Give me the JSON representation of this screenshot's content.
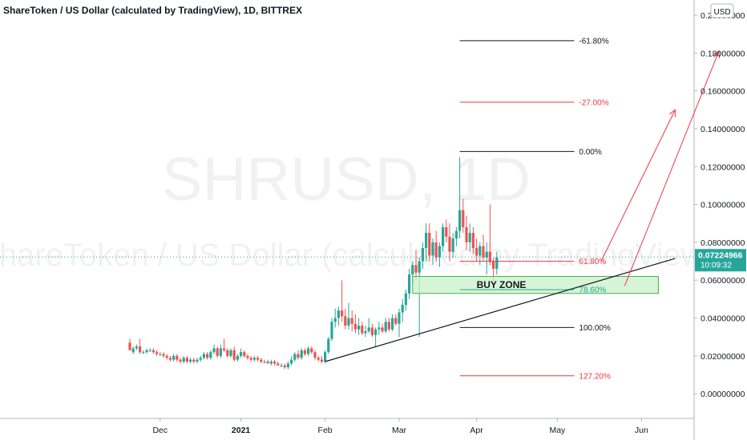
{
  "header": {
    "title": "ShareToken / US Dollar (calculated by TradingView), 1D, BITTREX"
  },
  "watermark": {
    "line1": "SHRUSD, 1D",
    "line2": "ShareToken / US Dollar (calculated by TradingView)"
  },
  "currency_button": "USD",
  "price_tag": {
    "price": "0.07224966",
    "countdown": "10:09:32"
  },
  "colors": {
    "up": "#26a69a",
    "down": "#ef5350",
    "fib_black": "#131722",
    "fib_red": "#f23645",
    "fib_teal": "#22ab94",
    "buy_zone_fill": "#c8f0c8",
    "buy_zone_border": "#4caf50",
    "axis_text": "#131722",
    "grid": "#e0e3eb",
    "tag_bg": "#26a69a"
  },
  "annotations": {
    "buy_zone": "BUY ZONE"
  },
  "fib_levels": [
    {
      "label": "-61.80%",
      "price": 0.1865,
      "color": "black"
    },
    {
      "label": "-27.00%",
      "price": 0.154,
      "color": "red"
    },
    {
      "label": "0.00%",
      "price": 0.128,
      "color": "black"
    },
    {
      "label": "61.80%",
      "price": 0.07,
      "color": "red"
    },
    {
      "label": "78.60%",
      "price": 0.055,
      "color": "teal"
    },
    {
      "label": "100.00%",
      "price": 0.035,
      "color": "black"
    },
    {
      "label": "127.20%",
      "price": 0.0095,
      "color": "red"
    }
  ],
  "chart_data": {
    "type": "candlestick",
    "title": "ShareToken / US Dollar (calculated by TradingView), 1D, BITTREX",
    "y_ticks": [
      "0.20000000",
      "0.18000000",
      "0.16000000",
      "0.14000000",
      "0.12000000",
      "0.10000000",
      "0.08000000",
      "0.06000000",
      "0.04000000",
      "0.02000000",
      "0.00000000"
    ],
    "x_ticks": [
      "Dec",
      "2021",
      "Feb",
      "Mar",
      "Apr",
      "May",
      "Jun"
    ],
    "ylim": [
      -0.013,
      0.208
    ],
    "current_price": 0.07224966,
    "support_line": {
      "from": {
        "day": 58,
        "price": 0.017
      },
      "to": {
        "day": 162,
        "price": 0.0715
      }
    },
    "projections": [
      {
        "from": {
          "day": 140,
          "price": 0.07
        },
        "to": {
          "day": 162,
          "price": 0.15
        }
      },
      {
        "from": {
          "day": 147,
          "price": 0.057
        },
        "to": {
          "day": 175,
          "price": 0.181
        }
      }
    ],
    "buy_zone_range": {
      "start_day": 84,
      "end_day": 157,
      "low": 0.053,
      "high": 0.062
    },
    "ohlc": [
      [
        0.027,
        0.029,
        0.024,
        0.023
      ],
      [
        0.022,
        0.025,
        0.021,
        0.024
      ],
      [
        0.024,
        0.026,
        0.023,
        0.025
      ],
      [
        0.025,
        0.029,
        0.021,
        0.022
      ],
      [
        0.022,
        0.023,
        0.021,
        0.022
      ],
      [
        0.022,
        0.024,
        0.021,
        0.023
      ],
      [
        0.023,
        0.024,
        0.022,
        0.023
      ],
      [
        0.023,
        0.024,
        0.021,
        0.022
      ],
      [
        0.022,
        0.023,
        0.02,
        0.021
      ],
      [
        0.021,
        0.022,
        0.02,
        0.021
      ],
      [
        0.021,
        0.022,
        0.019,
        0.02
      ],
      [
        0.02,
        0.021,
        0.018,
        0.019
      ],
      [
        0.019,
        0.02,
        0.017,
        0.018
      ],
      [
        0.018,
        0.021,
        0.017,
        0.02
      ],
      [
        0.02,
        0.021,
        0.017,
        0.018
      ],
      [
        0.018,
        0.019,
        0.016,
        0.017
      ],
      [
        0.017,
        0.02,
        0.016,
        0.019
      ],
      [
        0.019,
        0.02,
        0.016,
        0.017
      ],
      [
        0.017,
        0.019,
        0.016,
        0.018
      ],
      [
        0.018,
        0.019,
        0.016,
        0.017
      ],
      [
        0.017,
        0.019,
        0.016,
        0.018
      ],
      [
        0.018,
        0.02,
        0.017,
        0.019
      ],
      [
        0.019,
        0.022,
        0.018,
        0.021
      ],
      [
        0.021,
        0.022,
        0.018,
        0.019
      ],
      [
        0.019,
        0.023,
        0.018,
        0.022
      ],
      [
        0.022,
        0.026,
        0.021,
        0.024
      ],
      [
        0.024,
        0.025,
        0.019,
        0.02
      ],
      [
        0.02,
        0.026,
        0.019,
        0.024
      ],
      [
        0.024,
        0.029,
        0.022,
        0.023
      ],
      [
        0.023,
        0.024,
        0.019,
        0.02
      ],
      [
        0.02,
        0.024,
        0.019,
        0.023
      ],
      [
        0.023,
        0.025,
        0.017,
        0.018
      ],
      [
        0.018,
        0.021,
        0.017,
        0.02
      ],
      [
        0.02,
        0.024,
        0.019,
        0.022
      ],
      [
        0.022,
        0.023,
        0.019,
        0.02
      ],
      [
        0.02,
        0.021,
        0.018,
        0.019
      ],
      [
        0.019,
        0.02,
        0.017,
        0.018
      ],
      [
        0.018,
        0.02,
        0.017,
        0.019
      ],
      [
        0.019,
        0.02,
        0.017,
        0.018
      ],
      [
        0.018,
        0.019,
        0.016,
        0.017
      ],
      [
        0.017,
        0.018,
        0.016,
        0.017
      ],
      [
        0.017,
        0.018,
        0.016,
        0.016
      ],
      [
        0.016,
        0.018,
        0.015,
        0.017
      ],
      [
        0.017,
        0.018,
        0.015,
        0.016
      ],
      [
        0.016,
        0.017,
        0.015,
        0.015
      ],
      [
        0.015,
        0.016,
        0.014,
        0.015
      ],
      [
        0.015,
        0.016,
        0.013,
        0.014
      ],
      [
        0.014,
        0.017,
        0.013,
        0.016
      ],
      [
        0.016,
        0.02,
        0.015,
        0.018
      ],
      [
        0.018,
        0.022,
        0.017,
        0.021
      ],
      [
        0.021,
        0.023,
        0.018,
        0.019
      ],
      [
        0.019,
        0.024,
        0.018,
        0.023
      ],
      [
        0.023,
        0.024,
        0.02,
        0.021
      ],
      [
        0.021,
        0.025,
        0.02,
        0.024
      ],
      [
        0.024,
        0.025,
        0.021,
        0.022
      ],
      [
        0.022,
        0.023,
        0.018,
        0.019
      ],
      [
        0.019,
        0.02,
        0.017,
        0.018
      ],
      [
        0.018,
        0.02,
        0.016,
        0.017
      ],
      [
        0.017,
        0.023,
        0.016,
        0.022
      ],
      [
        0.022,
        0.03,
        0.021,
        0.029
      ],
      [
        0.029,
        0.04,
        0.028,
        0.038
      ],
      [
        0.038,
        0.045,
        0.035,
        0.04
      ],
      [
        0.04,
        0.046,
        0.036,
        0.044
      ],
      [
        0.044,
        0.06,
        0.038,
        0.041
      ],
      [
        0.041,
        0.045,
        0.034,
        0.036
      ],
      [
        0.036,
        0.048,
        0.034,
        0.04
      ],
      [
        0.04,
        0.044,
        0.033,
        0.037
      ],
      [
        0.037,
        0.042,
        0.032,
        0.034
      ],
      [
        0.034,
        0.04,
        0.031,
        0.036
      ],
      [
        0.036,
        0.038,
        0.031,
        0.032
      ],
      [
        0.032,
        0.036,
        0.03,
        0.033
      ],
      [
        0.033,
        0.04,
        0.032,
        0.035
      ],
      [
        0.035,
        0.037,
        0.03,
        0.031
      ],
      [
        0.031,
        0.035,
        0.025,
        0.034
      ],
      [
        0.034,
        0.038,
        0.031,
        0.035
      ],
      [
        0.035,
        0.037,
        0.032,
        0.033
      ],
      [
        0.033,
        0.04,
        0.032,
        0.038
      ],
      [
        0.038,
        0.04,
        0.033,
        0.034
      ],
      [
        0.034,
        0.042,
        0.033,
        0.04
      ],
      [
        0.04,
        0.042,
        0.036,
        0.037
      ],
      [
        0.037,
        0.045,
        0.03,
        0.043
      ],
      [
        0.043,
        0.05,
        0.038,
        0.047
      ],
      [
        0.047,
        0.055,
        0.044,
        0.053
      ],
      [
        0.053,
        0.066,
        0.05,
        0.063
      ],
      [
        0.063,
        0.07,
        0.058,
        0.068
      ],
      [
        0.068,
        0.076,
        0.06,
        0.064
      ],
      [
        0.064,
        0.072,
        0.03,
        0.07
      ],
      [
        0.07,
        0.08,
        0.066,
        0.077
      ],
      [
        0.077,
        0.09,
        0.07,
        0.085
      ],
      [
        0.085,
        0.09,
        0.07,
        0.073
      ],
      [
        0.073,
        0.082,
        0.068,
        0.08
      ],
      [
        0.08,
        0.086,
        0.07,
        0.072
      ],
      [
        0.072,
        0.08,
        0.067,
        0.078
      ],
      [
        0.078,
        0.09,
        0.075,
        0.088
      ],
      [
        0.088,
        0.092,
        0.08,
        0.083
      ],
      [
        0.083,
        0.09,
        0.07,
        0.075
      ],
      [
        0.075,
        0.085,
        0.072,
        0.082
      ],
      [
        0.082,
        0.088,
        0.078,
        0.086
      ],
      [
        0.086,
        0.125,
        0.082,
        0.097
      ],
      [
        0.097,
        0.103,
        0.085,
        0.088
      ],
      [
        0.088,
        0.094,
        0.076,
        0.08
      ],
      [
        0.08,
        0.09,
        0.075,
        0.085
      ],
      [
        0.085,
        0.088,
        0.074,
        0.077
      ],
      [
        0.077,
        0.082,
        0.07,
        0.073
      ],
      [
        0.073,
        0.08,
        0.068,
        0.078
      ],
      [
        0.078,
        0.084,
        0.07,
        0.072
      ],
      [
        0.072,
        0.08,
        0.063,
        0.075
      ],
      [
        0.075,
        0.1,
        0.068,
        0.07
      ],
      [
        0.07,
        0.072,
        0.058,
        0.066
      ],
      [
        0.066,
        0.075,
        0.063,
        0.072
      ]
    ]
  }
}
